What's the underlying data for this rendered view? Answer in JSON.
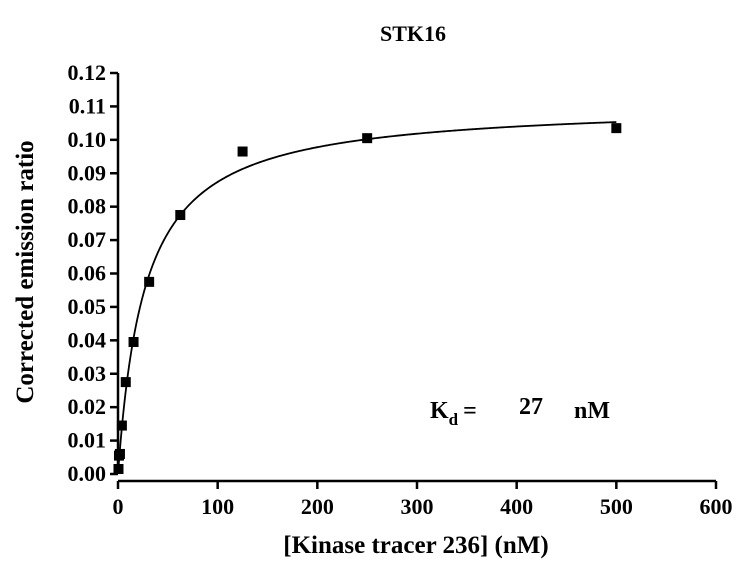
{
  "chart_data": {
    "type": "scatter",
    "title": "STK16",
    "xlabel": "[Kinase tracer 236] (nM)",
    "ylabel": "Corrected emission ratio",
    "xlim": [
      0,
      600
    ],
    "ylim": [
      0,
      0.12
    ],
    "x_ticks": [
      "0",
      "100",
      "200",
      "300",
      "400",
      "500",
      "600"
    ],
    "y_ticks": [
      "0.00",
      "0.01",
      "0.02",
      "0.03",
      "0.04",
      "0.05",
      "0.06",
      "0.07",
      "0.08",
      "0.09",
      "0.10",
      "0.11",
      "0.12"
    ],
    "grid": false,
    "series": [
      {
        "marker": "square",
        "color": "#000000",
        "points": [
          {
            "x": 0.49,
            "y": 0.0015
          },
          {
            "x": 0.98,
            "y": 0.0055
          },
          {
            "x": 1.95,
            "y": 0.006
          },
          {
            "x": 3.9,
            "y": 0.0145
          },
          {
            "x": 7.8,
            "y": 0.0275
          },
          {
            "x": 15.6,
            "y": 0.0395
          },
          {
            "x": 31.25,
            "y": 0.0575
          },
          {
            "x": 62.5,
            "y": 0.0775
          },
          {
            "x": 125,
            "y": 0.0965
          },
          {
            "x": 250,
            "y": 0.1005
          },
          {
            "x": 500,
            "y": 0.1035
          }
        ]
      }
    ],
    "fit": {
      "type": "one-site binding",
      "bmax": 0.111,
      "kd": 27,
      "color": "#000000"
    },
    "annotation": {
      "k": "K",
      "sub": "d",
      "eq": "=",
      "value": "27",
      "unit": "nM"
    }
  }
}
